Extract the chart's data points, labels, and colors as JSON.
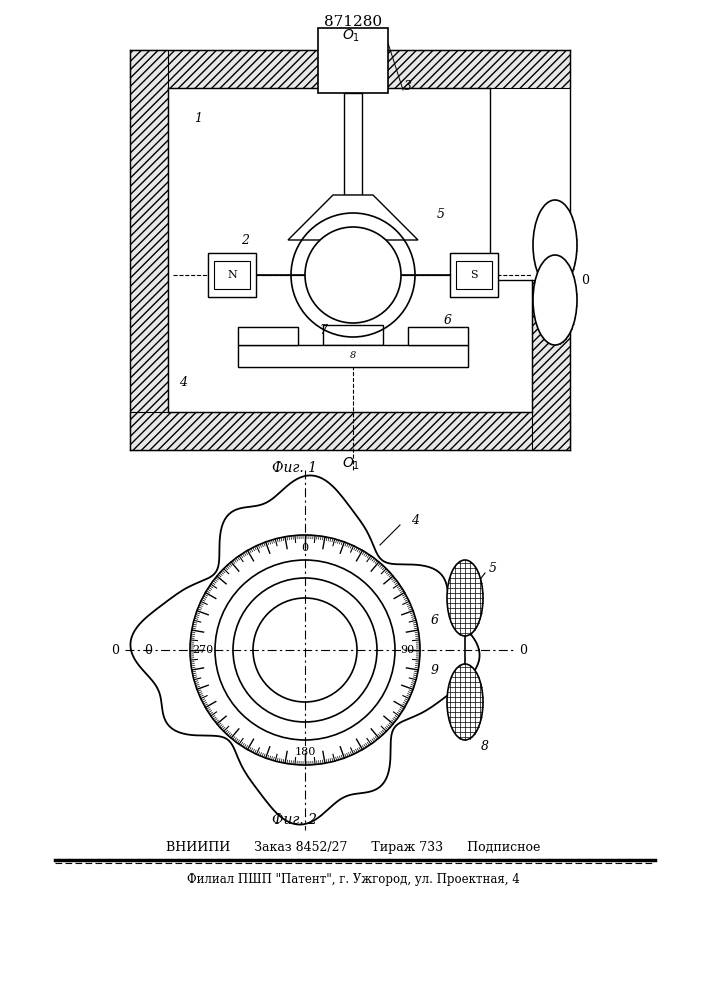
{
  "patent_number": "871280",
  "fig1_caption": "Фиг. 1",
  "fig2_caption": "Фиг. 2",
  "bottom_line1": "ВНИИПИ      Заказ 8452/27      Тираж 733      Подписное",
  "bottom_line2": "Филиал ПШП \"Патент\", г. Ужгород, ул. Проектная, 4",
  "bg_color": "#ffffff",
  "line_color": "#000000"
}
